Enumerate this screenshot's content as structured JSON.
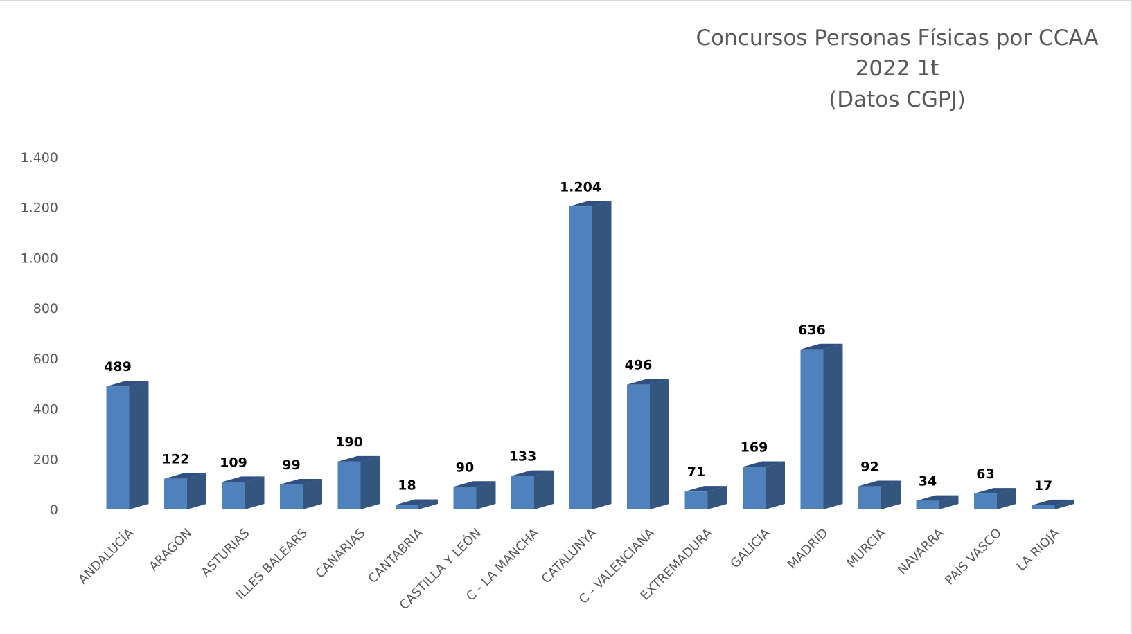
{
  "chart_data": {
    "type": "bar",
    "style": "3d-column",
    "title": [
      "Concursos Personas Físicas por CCAA",
      "2022 1t",
      "(Datos CGPJ)"
    ],
    "xlabel": "",
    "ylabel": "",
    "ylim": [
      0,
      1400
    ],
    "yticks": [
      0,
      200,
      400,
      600,
      800,
      1000,
      1200,
      1400
    ],
    "ytick_labels": [
      "0",
      "200",
      "400",
      "600",
      "800",
      "1.000",
      "1.200",
      "1.400"
    ],
    "grid": false,
    "legend": "none",
    "categories": [
      "ANDALUCÍA",
      "ARAGÓN",
      "ASTURIAS",
      "ILLES BALEARS",
      "CANARIAS",
      "CANTABRIA",
      "CASTILLA Y LEÓN",
      "C - LA MANCHA",
      "CATALUNYA",
      "C - VALENCIANA",
      "EXTREMADURA",
      "GALICIA",
      "MADRID",
      "MURCIA",
      "NAVARRA",
      "PAÍS VASCO",
      "LA RIOJA"
    ],
    "values": [
      489,
      122,
      109,
      99,
      190,
      18,
      90,
      133,
      1204,
      496,
      71,
      169,
      636,
      92,
      34,
      63,
      17
    ],
    "data_labels": [
      "489",
      "122",
      "109",
      "99",
      "190",
      "18",
      "90",
      "133",
      "1.204",
      "496",
      "71",
      "169",
      "636",
      "92",
      "34",
      "63",
      "17"
    ],
    "colors": {
      "front": "#4f81bd",
      "side": "#34557d",
      "top": "#2f5081"
    }
  }
}
